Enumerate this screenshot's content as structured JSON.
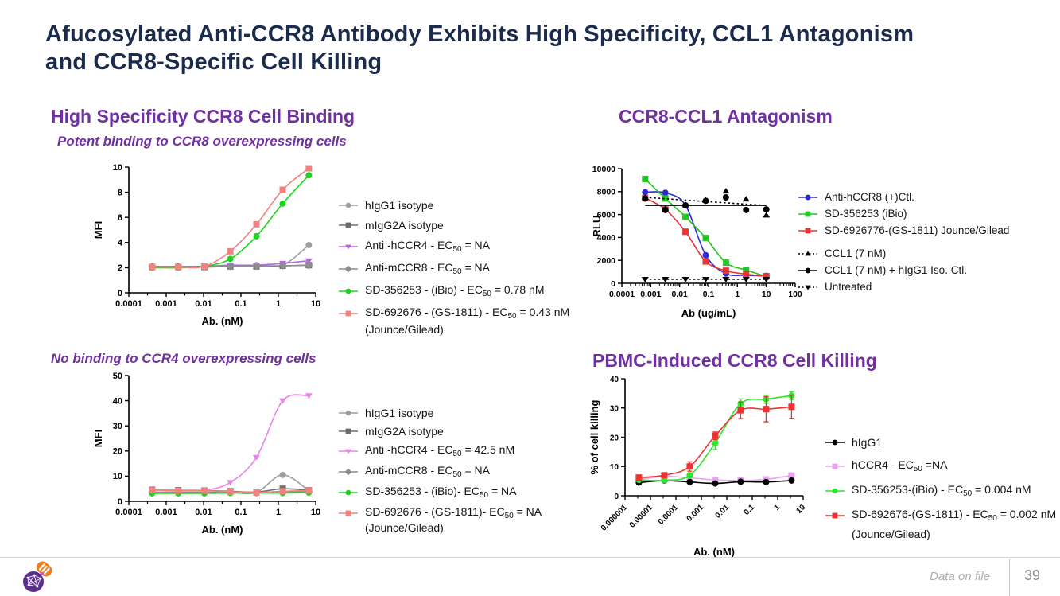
{
  "slide": {
    "title": "Afucosylated Anti-CCR8 Antibody Exhibits High Specificity, CCL1 Antagonism and CCR8-Specific Cell Killing",
    "footer": {
      "note": "Data on file",
      "page": "39"
    }
  },
  "sections": {
    "binding": {
      "heading": "High Specificity CCR8 Cell Binding",
      "subtitle": "Potent binding to CCR8 overexpressing cells"
    },
    "antagonism": {
      "heading": "CCR8-CCL1 Antagonism"
    },
    "ccr4": {
      "subtitle": "No binding to CCR4 overexpressing cells"
    },
    "killing": {
      "heading": "PBMC-Induced CCR8 Cell Killing"
    }
  },
  "colors": {
    "title": "#1B2B4B",
    "heading": "#7030A0",
    "axis": "#000000"
  },
  "chart_data": [
    {
      "id": "ccr8-binding",
      "type": "line",
      "title": "Potent binding to CCR8 overexpressing cells",
      "xlabel": "Ab. (nM)",
      "ylabel": "MFI",
      "xscale": "log",
      "xlim": [
        0.0001,
        10
      ],
      "xticks": [
        0.0001,
        0.001,
        0.01,
        0.1,
        1,
        10
      ],
      "ylim": [
        0,
        10
      ],
      "yticks": [
        0,
        2,
        4,
        6,
        8,
        10
      ],
      "grid": false,
      "legend_position": "right",
      "x": [
        0.00042,
        0.0021,
        0.0105,
        0.052,
        0.26,
        1.31,
        6.55
      ],
      "series": [
        {
          "label": "hIgG1 isotype",
          "color": "#9E9E9E",
          "marker": "circle",
          "values": [
            2.1,
            2.1,
            2.1,
            2.15,
            2.2,
            2.2,
            3.8
          ]
        },
        {
          "label": "mIgG2A isotype",
          "color": "#6E6E6E",
          "marker": "square",
          "values": [
            2.05,
            2.05,
            2.05,
            2.1,
            2.1,
            2.15,
            2.2
          ]
        },
        {
          "label": "Anti -hCCR4 - EC₅₀ = NA",
          "color": "#B266DD",
          "marker": "triangle-down",
          "values": [
            2.1,
            2.1,
            2.1,
            2.2,
            2.2,
            2.35,
            2.55
          ]
        },
        {
          "label": "Anti-mCCR8 - EC₅₀ = NA",
          "color": "#8C8C8C",
          "marker": "diamond",
          "values": [
            2.1,
            2.1,
            2.1,
            2.1,
            2.15,
            2.15,
            2.2
          ]
        },
        {
          "label": "SD-356253 - (iBio) - EC₅₀ = 0.78 nM",
          "color": "#1ED31E",
          "marker": "circle",
          "values": [
            2.0,
            2.0,
            2.1,
            2.7,
            4.5,
            7.1,
            9.35
          ]
        },
        {
          "label": "SD-692676 - (GS-1811) - EC₅₀ = 0.43 nM",
          "label2": "(Jounce/Gilead)",
          "color": "#F28282",
          "marker": "square",
          "values": [
            2.05,
            2.05,
            2.1,
            3.3,
            5.45,
            8.2,
            9.9
          ]
        }
      ]
    },
    {
      "id": "ccl1-antagonism",
      "type": "line",
      "title": "CCR8-CCL1 Antagonism",
      "xlabel": "Ab (ug/mL)",
      "ylabel": "RLU",
      "xscale": "log",
      "xlim": [
        0.0001,
        100
      ],
      "xticks": [
        0.0001,
        0.001,
        0.01,
        0.1,
        1,
        10,
        100
      ],
      "ylim": [
        0,
        10000
      ],
      "yticks": [
        0,
        2000,
        4000,
        6000,
        8000,
        10000
      ],
      "grid": false,
      "legend_position": "right",
      "x": [
        0.00064,
        0.0032,
        0.016,
        0.08,
        0.4,
        2,
        10
      ],
      "series": [
        {
          "label": "Anti-hCCR8 (+)Ctl.",
          "color": "#2C2CD6",
          "marker": "circle",
          "values": [
            7950,
            7900,
            6800,
            2450,
            850,
            700,
            650
          ]
        },
        {
          "label": "SD-356253 (iBio)",
          "color": "#25C525",
          "marker": "square",
          "values": [
            9100,
            7400,
            5800,
            3950,
            1800,
            1150,
            600
          ]
        },
        {
          "label": "SD-6926776-(GS-1811) Jounce/Gilead",
          "color": "#E93535",
          "marker": "square",
          "values": [
            7450,
            6450,
            4500,
            1900,
            1100,
            800,
            620
          ]
        },
        {
          "label": "CCL1 (7 nM)",
          "color": "#000000",
          "marker": "triangle-up",
          "dash": true,
          "values": [
            7500,
            6500,
            6850,
            7250,
            8050,
            7350,
            5950
          ],
          "fit": [
            7500,
            7380,
            7260,
            7140,
            7020,
            6900,
            6800
          ]
        },
        {
          "label": "CCL1 (7 nM) + hIgG1 Iso. Ctl.",
          "color": "#000000",
          "marker": "circle",
          "values": [
            7400,
            6400,
            6800,
            7200,
            7500,
            6400,
            6450
          ],
          "fit": [
            6800,
            6800,
            6800,
            6800,
            6800,
            6800,
            6800
          ]
        },
        {
          "label": "Untreated",
          "color": "#000000",
          "marker": "triangle-down",
          "dash": true,
          "values": [
            350,
            350,
            350,
            350,
            350,
            350,
            350
          ],
          "fit": [
            350,
            350,
            350,
            350,
            350,
            350,
            350
          ]
        }
      ]
    },
    {
      "id": "ccr4-binding",
      "type": "line",
      "title": "No binding to CCR4 overexpressing cells",
      "xlabel": "Ab. (nM)",
      "ylabel": "MFI",
      "xscale": "log",
      "xlim": [
        0.0001,
        10
      ],
      "xticks": [
        0.0001,
        0.001,
        0.01,
        0.1,
        1,
        10
      ],
      "ylim": [
        0,
        50
      ],
      "yticks": [
        0,
        10,
        20,
        30,
        40,
        50
      ],
      "grid": false,
      "legend_position": "right",
      "x": [
        0.00042,
        0.0021,
        0.0105,
        0.052,
        0.26,
        1.31,
        6.55
      ],
      "series": [
        {
          "label": "hIgG1 isotype",
          "color": "#9E9E9E",
          "marker": "circle",
          "values": [
            3.5,
            3.5,
            3.5,
            3.6,
            3.6,
            10.5,
            4.2
          ]
        },
        {
          "label": "mIgG2A isotype",
          "color": "#6E6E6E",
          "marker": "square",
          "values": [
            4.6,
            4.4,
            4.3,
            4.0,
            3.7,
            5.0,
            4.4
          ]
        },
        {
          "label": "Anti -hCCR4 - EC₅₀ = 42.5 nM",
          "color": "#E884E8",
          "marker": "triangle-down",
          "values": [
            4.5,
            4.4,
            4.4,
            7.5,
            17.5,
            40,
            42
          ]
        },
        {
          "label": "Anti-mCCR8 - EC₅₀ = NA",
          "color": "#8C8C8C",
          "marker": "diamond",
          "values": [
            3.6,
            3.6,
            3.6,
            3.7,
            3.6,
            3.7,
            3.8
          ]
        },
        {
          "label": "SD-356253 - (iBio)- EC₅₀ = NA",
          "color": "#1ED31E",
          "marker": "circle",
          "values": [
            3.2,
            3.2,
            3.2,
            3.3,
            3.3,
            3.3,
            3.5
          ]
        },
        {
          "label": "SD-692676 - (GS-1811)- EC₅₀ = NA",
          "label2": "(Jounce/Gilead)",
          "color": "#F28282",
          "marker": "square",
          "values": [
            4.4,
            4.2,
            4.2,
            3.8,
            3.5,
            4.0,
            4.3
          ]
        }
      ]
    },
    {
      "id": "pbmc-killing",
      "type": "line",
      "title": "PBMC-Induced CCR8 Cell Killing",
      "xlabel": "Ab. (nM)",
      "ylabel": "% of cell killing",
      "xscale": "log",
      "xlim": [
        1e-06,
        10
      ],
      "xticks": [
        1e-06,
        1e-05,
        0.0001,
        0.001,
        0.01,
        0.1,
        1,
        10
      ],
      "ylim": [
        0,
        40
      ],
      "yticks": [
        0,
        10,
        20,
        30,
        40
      ],
      "grid": false,
      "legend_position": "right",
      "rotated_xticks": true,
      "x": [
        3.5e-06,
        3.5e-05,
        0.00035,
        0.0035,
        0.035,
        0.35,
        3.5
      ],
      "series": [
        {
          "label": "hIgG1",
          "color": "#000000",
          "marker": "circle",
          "values": [
            4.5,
            5.2,
            4.7,
            4.2,
            4.8,
            4.7,
            5.2
          ]
        },
        {
          "label": "hCCR4 - EC₅₀ =NA",
          "color": "#E9A3F0",
          "marker": "square",
          "behind": true,
          "values": [
            5.6,
            6.6,
            6.1,
            5.4,
            5.2,
            5.6,
            6.9
          ]
        },
        {
          "label": "SD-356253-(iBio) - EC₅₀ = 0.004 nM",
          "color": "#2FE52F",
          "marker": "circle",
          "values": [
            5.4,
            5.3,
            7.0,
            18.0,
            31.5,
            33.0,
            34.2
          ],
          "err": [
            0.5,
            0.5,
            0.8,
            2.2,
            1.6,
            1.4,
            1.3
          ]
        },
        {
          "label": "SD-692676-(GS-1811) - EC₅₀ = 0.002 nM",
          "label2": "(Jounce/Gilead)",
          "color": "#ED3232",
          "marker": "square",
          "values": [
            6.2,
            7.0,
            10.0,
            20.5,
            29.2,
            29.6,
            30.4
          ],
          "err": [
            0.7,
            0.7,
            1.6,
            1.3,
            2.8,
            4.3,
            3.9
          ]
        }
      ]
    }
  ]
}
